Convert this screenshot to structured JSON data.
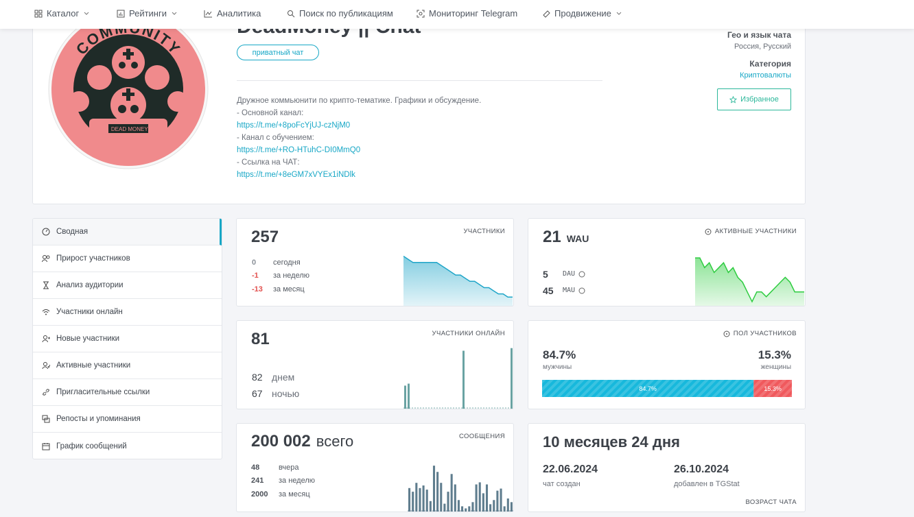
{
  "nav": {
    "items": [
      "Каталог",
      "Рейтинги",
      "Аналитика",
      "Поиск по публикациям",
      "Мониторинг Telegram",
      "Продвижение"
    ]
  },
  "header": {
    "title": "DeadMoney || Chat",
    "badge": "приватный чат",
    "avatar": {
      "ring_text": "COMMUNITY",
      "banner_left": "DEAD",
      "banner_right": "MONEY"
    },
    "description": [
      "Дружное коммьюнити по крипто-тематике. Графики и обсуждение.",
      "- Основной канал:",
      "https://t.me/+8poFcYjUJ-czNjM0",
      "- Канал с обучением:",
      "https://t.me/+RO-HTuhC-DI0MmQ0",
      "- Ссылка на ЧАТ:",
      "https://t.me/+8eGM7xVYEx1iNDlk"
    ],
    "geo_label": "Гео и язык чата",
    "geo_value": "Россия, Русский",
    "category_label": "Категория",
    "category_value": "Криптовалюты",
    "favorite_button": "Избранное"
  },
  "sidebar": {
    "items": [
      "Сводная",
      "Прирост участников",
      "Анализ аудитории",
      "Участники онлайн",
      "Новые участники",
      "Активные участники",
      "Пригласительные ссылки",
      "Репосты и упоминания",
      "График сообщений"
    ]
  },
  "cards": {
    "members": {
      "value": "257",
      "label": "УЧАСТНИКИ",
      "rows": [
        {
          "value": "0",
          "text": "сегодня"
        },
        {
          "value": "-1",
          "text": "за неделю"
        },
        {
          "value": "-13",
          "text": "за месяц"
        }
      ],
      "chart": {
        "type": "area",
        "color": "#1ea5c8",
        "values": [
          270,
          269,
          268,
          268,
          268,
          268,
          268,
          268,
          267,
          266,
          265,
          264,
          264,
          263,
          262,
          262,
          261,
          260,
          260,
          259,
          258,
          258,
          257,
          257
        ],
        "ylim": [
          254,
          271
        ]
      }
    },
    "active": {
      "value": "21",
      "unit": "WAU",
      "label": "АКТИВНЫЕ УЧАСТНИКИ",
      "rows": [
        {
          "value": "5",
          "text": "DAU"
        },
        {
          "value": "45",
          "text": "MAU"
        }
      ],
      "chart": {
        "type": "area",
        "color": "#2ecc40",
        "values": [
          10,
          10,
          8,
          9,
          7,
          8,
          9,
          7,
          8,
          6,
          5,
          3,
          1,
          3,
          3,
          2,
          3,
          4,
          5,
          6,
          5,
          3,
          3,
          3
        ],
        "ylim": [
          0,
          11
        ]
      }
    },
    "online": {
      "value": "81",
      "label": "УЧАСТНИКИ ОНЛАЙН",
      "rows": [
        {
          "value": "82",
          "text": "днем"
        },
        {
          "value": "67",
          "text": "ночью"
        }
      ],
      "chart": {
        "type": "bar",
        "color": "#6aa3a3",
        "values": [
          35,
          38,
          0,
          0,
          0,
          0,
          0,
          0,
          0,
          0,
          0,
          0,
          0,
          0,
          0,
          0,
          0,
          88,
          0,
          0,
          0,
          0,
          0,
          0,
          0,
          0,
          0,
          0,
          0,
          0,
          0,
          92
        ],
        "ylim": [
          0,
          100
        ]
      }
    },
    "gender": {
      "label": "ПОЛ УЧАСТНИКОВ",
      "male": {
        "value": 84.7,
        "label": "84.7%",
        "text": "мужчины",
        "color": "#17b8dc"
      },
      "female": {
        "value": 15.3,
        "label": "15.3%",
        "text": "женщины",
        "color": "#f0595d"
      }
    },
    "messages": {
      "value": "200 002",
      "unit": "всего",
      "label": "СООБЩЕНИЯ",
      "rows": [
        {
          "value": "48",
          "text": "вчера"
        },
        {
          "value": "241",
          "text": "за неделю"
        },
        {
          "value": "2000",
          "text": "за месяц"
        }
      ],
      "chart": {
        "type": "bar",
        "color": "#5f7d8e",
        "values": [
          45,
          38,
          55,
          45,
          50,
          42,
          20,
          88,
          76,
          55,
          15,
          38,
          72,
          52,
          22,
          10,
          6,
          10,
          18,
          52,
          56,
          35,
          52,
          14,
          22,
          40,
          44,
          10,
          25,
          18
        ],
        "ylim": [
          0,
          100
        ]
      }
    },
    "age": {
      "value": "10 месяцев 24 дня",
      "label": "ВОЗРАСТ ЧАТА",
      "created": {
        "date": "22.06.2024",
        "text": "чат создан"
      },
      "added": {
        "date": "26.10.2024",
        "text": "добавлен в TGStat"
      }
    }
  }
}
